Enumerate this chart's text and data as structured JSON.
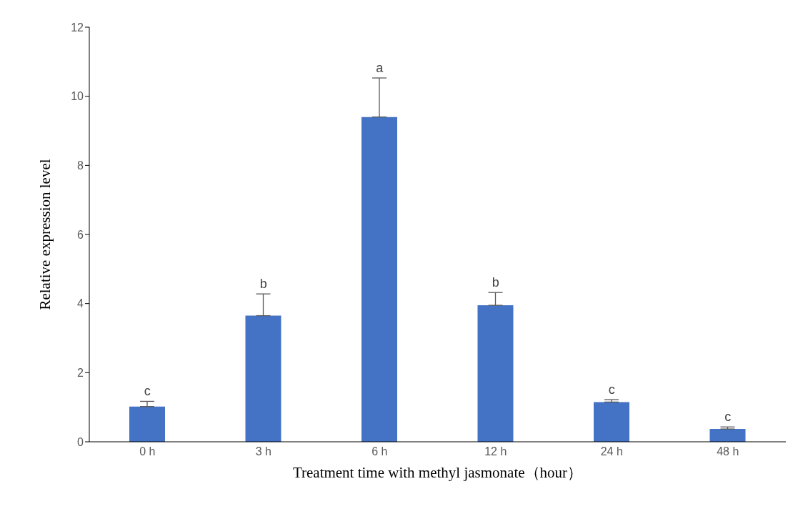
{
  "chart_data": {
    "type": "bar",
    "xlabel": "Treatment time with methyl jasmonate（hour）",
    "ylabel": "Relative expression level",
    "categories": [
      "0 h",
      "3 h",
      "6 h",
      "12 h",
      "24 h",
      "48 h"
    ],
    "values": [
      1.02,
      3.65,
      9.4,
      3.95,
      1.15,
      0.37
    ],
    "errors": [
      [
        1.02,
        1.17
      ],
      [
        3.65,
        4.28
      ],
      [
        9.4,
        10.53
      ],
      [
        3.95,
        4.32
      ],
      [
        1.15,
        1.22
      ],
      [
        0.37,
        0.43
      ]
    ],
    "color": "#4472c4",
    "ylim": [
      0,
      12
    ],
    "yticks": [
      0,
      2,
      4,
      6,
      8,
      10,
      12
    ],
    "grid": false,
    "legend": false,
    "annotations": [
      {
        "text": "c",
        "x": "0 h",
        "y": 1.17
      },
      {
        "text": "b",
        "x": "3 h",
        "y": 4.28
      },
      {
        "text": "a",
        "x": "6 h",
        "y": 10.53
      },
      {
        "text": "b",
        "x": "12 h",
        "y": 4.32
      },
      {
        "text": "c",
        "x": "24 h",
        "y": 1.22
      },
      {
        "text": "c",
        "x": "48 h",
        "y": 0.43
      }
    ]
  }
}
